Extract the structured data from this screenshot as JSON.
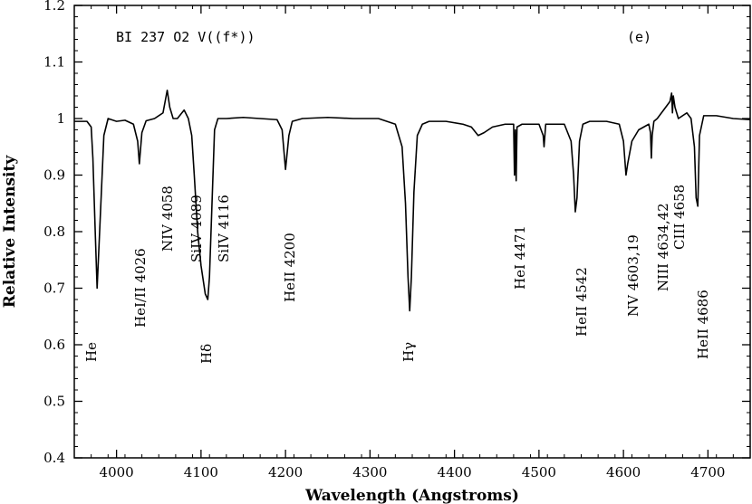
{
  "chart_data": {
    "type": "line",
    "title": "BI 237 O2 V((f*))",
    "panel_label": "(e)",
    "xlabel": "Wavelength (Angstroms)",
    "ylabel": "Relative Intensity",
    "xlim": [
      3950,
      4750
    ],
    "ylim": [
      0.4,
      1.2
    ],
    "x_ticks": [
      4000,
      4100,
      4200,
      4300,
      4400,
      4500,
      4600,
      4700
    ],
    "y_ticks": [
      0.4,
      0.5,
      0.6,
      0.7,
      0.8,
      0.9,
      1,
      1.1,
      1.2
    ],
    "y_tick_labels": [
      "0.4",
      "0.5",
      "0.6",
      "0.7",
      "0.8",
      "0.9",
      "1",
      "1.1",
      "1.2"
    ],
    "grid": false,
    "series": [
      {
        "x": [
          3950,
          3965,
          3970,
          3972,
          3975,
          3977,
          3980,
          3985,
          3990,
          4000,
          4010,
          4020,
          4025,
          4027,
          4030,
          4035,
          4045,
          4055,
          4060,
          4063,
          4067,
          4072,
          4080,
          4085,
          4089,
          4092,
          4096,
          4100,
          4105,
          4108,
          4110,
          4113,
          4116,
          4120,
          4130,
          4150,
          4170,
          4190,
          4196,
          4200,
          4204,
          4208,
          4220,
          4250,
          4280,
          4310,
          4330,
          4338,
          4342,
          4345,
          4347,
          4349,
          4352,
          4356,
          4362,
          4370,
          4390,
          4410,
          4420,
          4428,
          4435,
          4445,
          4460,
          4470,
          4471,
          4472,
          4473,
          4474,
          4480,
          4500,
          4505,
          4506,
          4507,
          4508,
          4515,
          4530,
          4538,
          4541,
          4543,
          4545,
          4548,
          4552,
          4560,
          4580,
          4595,
          4600,
          4603,
          4605,
          4610,
          4618,
          4630,
          4632,
          4633,
          4634,
          4636,
          4640,
          4650,
          4655,
          4657,
          4658,
          4659,
          4661,
          4665,
          4675,
          4680,
          4684,
          4686,
          4688,
          4690,
          4695,
          4710,
          4730,
          4750
        ],
        "y": [
          0.995,
          0.995,
          0.985,
          0.93,
          0.79,
          0.7,
          0.8,
          0.97,
          1.0,
          0.995,
          0.997,
          0.99,
          0.96,
          0.92,
          0.975,
          0.996,
          1.0,
          1.01,
          1.05,
          1.02,
          1.0,
          1.0,
          1.015,
          1.0,
          0.97,
          0.9,
          0.8,
          0.74,
          0.69,
          0.68,
          0.72,
          0.85,
          0.98,
          1.0,
          1.0,
          1.002,
          1.0,
          0.998,
          0.98,
          0.91,
          0.97,
          0.995,
          1.0,
          1.002,
          1.0,
          1.0,
          0.99,
          0.95,
          0.85,
          0.72,
          0.66,
          0.72,
          0.87,
          0.97,
          0.99,
          0.995,
          0.995,
          0.99,
          0.985,
          0.97,
          0.975,
          0.985,
          0.99,
          0.99,
          0.9,
          0.98,
          0.89,
          0.985,
          0.99,
          0.99,
          0.97,
          0.95,
          0.97,
          0.99,
          0.99,
          0.99,
          0.96,
          0.9,
          0.835,
          0.86,
          0.96,
          0.99,
          0.995,
          0.995,
          0.99,
          0.96,
          0.9,
          0.92,
          0.96,
          0.98,
          0.99,
          0.975,
          0.93,
          0.97,
          0.995,
          1.0,
          1.02,
          1.03,
          1.045,
          1.01,
          1.04,
          1.02,
          1.0,
          1.01,
          1.0,
          0.95,
          0.86,
          0.845,
          0.97,
          1.005,
          1.005,
          1.0,
          0.998
        ]
      }
    ],
    "annotations": [
      {
        "text": "He",
        "x": 3970
      },
      {
        "text": "HeI/II 4026",
        "x": 4026
      },
      {
        "text": "NIV 4058",
        "x": 4058
      },
      {
        "text": "SiIV 4089",
        "x": 4089
      },
      {
        "text": "Hδ",
        "x": 4102
      },
      {
        "text": "SiIV 4116",
        "x": 4116
      },
      {
        "text": "HeII 4200",
        "x": 4200
      },
      {
        "text": "Hγ",
        "x": 4340
      },
      {
        "text": "HeI 4471",
        "x": 4471
      },
      {
        "text": "HeII 4542",
        "x": 4542
      },
      {
        "text": "NV 4603,19",
        "x": 4603
      },
      {
        "text": "NIII 4634,42",
        "x": 4634
      },
      {
        "text": "CIII 4658",
        "x": 4658
      },
      {
        "text": "HeII 4686",
        "x": 4686
      }
    ]
  }
}
